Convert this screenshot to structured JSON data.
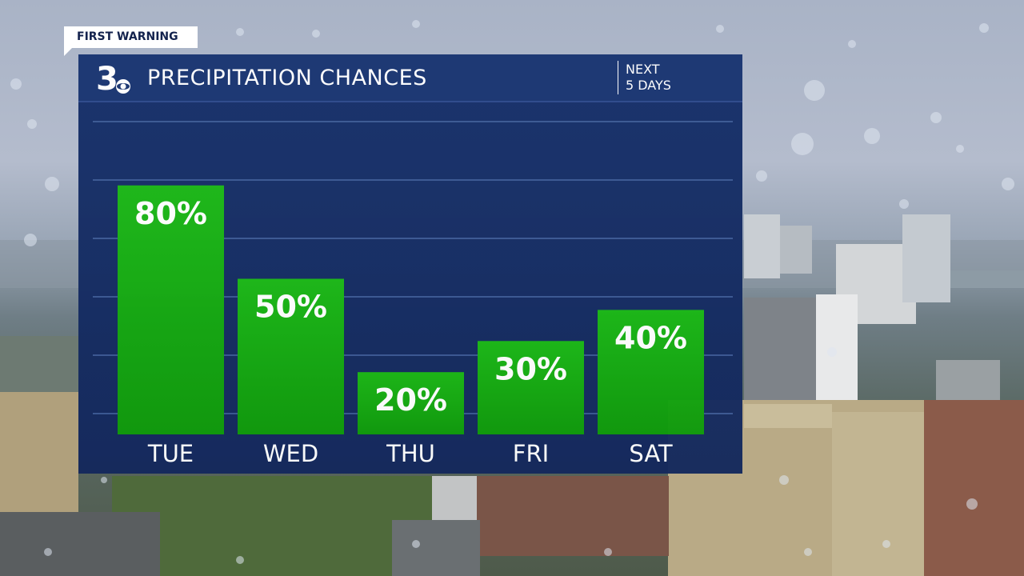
{
  "badge": {
    "text": "FIRST WARNING"
  },
  "header": {
    "logo_text": "3",
    "title": "PRECIPITATION CHANCES",
    "subtitle_line1": "NEXT",
    "subtitle_line2": "5 DAYS"
  },
  "colors": {
    "panel": "#17306a",
    "header": "#1a3572",
    "bar": "#13a00f",
    "bar_light": "#1fc41a",
    "gridline": "#3b5893",
    "text": "#ffffff",
    "badge_text": "#13224d"
  },
  "chart_data": {
    "type": "bar",
    "categories": [
      "TUE",
      "WED",
      "THU",
      "FRI",
      "SAT"
    ],
    "values": [
      80,
      50,
      20,
      30,
      40
    ],
    "data_labels": [
      "80%",
      "50%",
      "20%",
      "30%",
      "40%"
    ],
    "title": "PRECIPITATION CHANCES",
    "subtitle": "NEXT 5 DAYS",
    "ylim": [
      0,
      100
    ],
    "unit": "%",
    "grid": true,
    "legend": "none"
  }
}
